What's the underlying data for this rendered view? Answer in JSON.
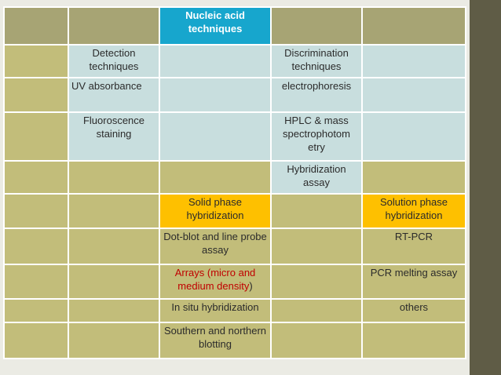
{
  "table": {
    "header_title": "Nucleic acid techniques",
    "detection_header": "Detection techniques",
    "discrimination_header": "Discrimination techniques",
    "uv_absorbance": "UV absorbance",
    "electrophoresis": "electrophoresis",
    "fluoroscence_staining": "Fluoroscence staining",
    "hplc_mass": "HPLC & mass spectrophotom etry",
    "hybridization_assay": "Hybridization assay",
    "solid_phase": "Solid phase hybridization",
    "solution_phase": "Solution phase hybridization",
    "dot_blot": "Dot-blot and line probe assay",
    "rt_pcr": "RT-PCR",
    "arrays_red": "Arrays (micro and medium density",
    "arrays_close": ")",
    "pcr_melting": "PCR melting assay",
    "in_situ": "In situ hybridization",
    "others": "others",
    "southern_northern": "Southern and northern blotting"
  },
  "colors": {
    "header_blue": "#17a6cd",
    "light_blue": "#c8dede",
    "orange": "#fec000",
    "olive": "#c2bd7a",
    "dark_band": "#5f5c46",
    "red_text": "#c00000"
  }
}
